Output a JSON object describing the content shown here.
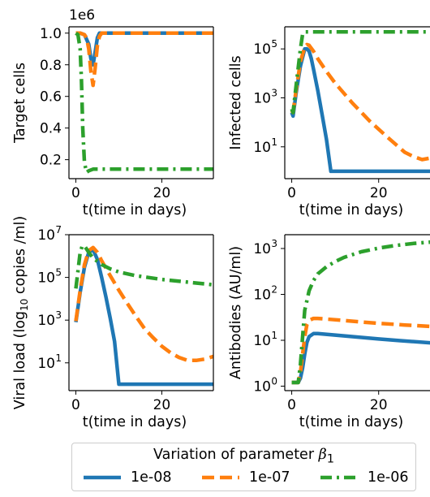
{
  "colors": {
    "blue": "#1f77b4",
    "orange": "#ff7f0e",
    "green": "#2ca02c"
  },
  "legend": {
    "title": "Variation of parameter ",
    "title_symbol": "β",
    "title_subscript": "1",
    "entries": [
      {
        "label": "1e-08",
        "color": "#1f77b4",
        "style": "solid"
      },
      {
        "label": "1e-07",
        "color": "#ff7f0e",
        "style": "dashed"
      },
      {
        "label": "1e-06",
        "color": "#2ca02c",
        "style": "dashdot"
      }
    ]
  },
  "chart_data": [
    {
      "type": "line",
      "ylabel": "Target cells",
      "xlabel": "t(time in days)",
      "offset_text": "1e6",
      "yscale": "linear",
      "xlim": [
        -1.6,
        32
      ],
      "ylim": [
        0.08,
        1.04
      ],
      "xticks": [
        0,
        20
      ],
      "xtick_labels": [
        "0",
        "20"
      ],
      "yticks": [
        0.2,
        0.4,
        0.6,
        0.8,
        1.0
      ],
      "ytick_labels": [
        "0.2",
        "0.4",
        "0.6",
        "0.8",
        "1.0"
      ],
      "series": [
        {
          "color": "#1f77b4",
          "style": "solid",
          "x": [
            0,
            1,
            2,
            3,
            3.5,
            4,
            4.5,
            5,
            5.5,
            6,
            7,
            10,
            32
          ],
          "y": [
            1.0,
            1.0,
            0.99,
            0.93,
            0.84,
            0.8,
            0.88,
            0.97,
            1.0,
            1.0,
            1.0,
            1.0,
            1.0
          ]
        },
        {
          "color": "#ff7f0e",
          "style": "dashed",
          "x": [
            0,
            1,
            2,
            2.5,
            3,
            3.5,
            4,
            4.5,
            5,
            5.5,
            6,
            7,
            10,
            32
          ],
          "y": [
            1.0,
            1.0,
            0.99,
            0.97,
            0.9,
            0.76,
            0.67,
            0.78,
            0.92,
            0.98,
            1.0,
            1.0,
            1.0,
            1.0
          ]
        },
        {
          "color": "#2ca02c",
          "style": "dashdot",
          "x": [
            0,
            0.5,
            1,
            1.3,
            1.6,
            2,
            2.5,
            3,
            4,
            6,
            10,
            20,
            32
          ],
          "y": [
            1.0,
            0.99,
            0.9,
            0.7,
            0.4,
            0.18,
            0.12,
            0.13,
            0.14,
            0.14,
            0.14,
            0.14,
            0.14
          ]
        }
      ]
    },
    {
      "type": "line",
      "ylabel": "Infected cells",
      "xlabel": "t(time in days)",
      "yscale": "log",
      "xlim": [
        -1.6,
        32
      ],
      "ylim": [
        0.5,
        800000
      ],
      "xticks": [
        0,
        20
      ],
      "xtick_labels": [
        "0",
        "20"
      ],
      "yticks": [
        10,
        1000,
        100000
      ],
      "ytick_labels": [
        "10^1",
        "10^3",
        "10^5"
      ],
      "series": [
        {
          "color": "#1f77b4",
          "style": "solid",
          "x": [
            0,
            0.3,
            1,
            2,
            3,
            3.5,
            4,
            4.5,
            5,
            6,
            7,
            8,
            9,
            10,
            20,
            32
          ],
          "y": [
            250,
            180,
            1500,
            20000,
            100000,
            100000,
            80000,
            40000,
            15000,
            2000,
            200,
            20,
            1,
            1,
            1,
            1
          ]
        },
        {
          "color": "#ff7f0e",
          "style": "dashed",
          "x": [
            0,
            0.3,
            1,
            2,
            3,
            3.5,
            4,
            5,
            6,
            8,
            10,
            14,
            18,
            22,
            26,
            28,
            30,
            32
          ],
          "y": [
            300,
            250,
            2000,
            30000,
            120000,
            150000,
            140000,
            80000,
            40000,
            12000,
            4000,
            600,
            110,
            25,
            6,
            4,
            3,
            3.5
          ]
        },
        {
          "color": "#2ca02c",
          "style": "dashdot",
          "x": [
            0,
            0.3,
            1,
            2,
            2.5,
            3,
            4,
            10,
            20,
            32
          ],
          "y": [
            350,
            250,
            3000,
            100000,
            400000,
            500000,
            500000,
            500000,
            500000,
            500000
          ]
        }
      ]
    },
    {
      "type": "line",
      "ylabel": "Viral load (log10 copies /ml)",
      "xlabel": "t(time in days)",
      "yscale": "log",
      "xlim": [
        -1.6,
        32
      ],
      "ylim": [
        0.5,
        10000000
      ],
      "xticks": [
        0,
        20
      ],
      "xtick_labels": [
        "0",
        "20"
      ],
      "yticks": [
        10,
        1000,
        100000,
        10000000
      ],
      "ytick_labels": [
        "10^1",
        "10^3",
        "10^5",
        "10^7"
      ],
      "series": [
        {
          "color": "#1f77b4",
          "style": "solid",
          "x": [
            0,
            1,
            2,
            3,
            4,
            5,
            6,
            7,
            8,
            9,
            10,
            11,
            20,
            32
          ],
          "y": [
            800,
            20000,
            300000,
            1500000,
            2000000,
            700000,
            100000,
            12000,
            1200,
            100,
            1,
            1,
            1,
            1
          ]
        },
        {
          "color": "#ff7f0e",
          "style": "dashed",
          "x": [
            0,
            1,
            2,
            3,
            4,
            5,
            6,
            8,
            10,
            12,
            14,
            16,
            18,
            20,
            22,
            24,
            26,
            28,
            30,
            32
          ],
          "y": [
            900,
            25000,
            400000,
            1800000,
            2500000,
            1500000,
            600000,
            120000,
            25000,
            6000,
            1500,
            400,
            150,
            60,
            30,
            18,
            13,
            13,
            15,
            20
          ]
        },
        {
          "color": "#2ca02c",
          "style": "dashdot",
          "x": [
            0,
            0.5,
            1,
            1.5,
            2,
            3,
            4,
            6,
            8,
            10,
            14,
            20,
            26,
            32
          ],
          "y": [
            30000,
            200000,
            1500000,
            3000000,
            3000000,
            1500000,
            800000,
            400000,
            250000,
            180000,
            120000,
            80000,
            60000,
            45000
          ]
        }
      ]
    },
    {
      "type": "line",
      "ylabel": "Antibodies (AU/ml)",
      "xlabel": "t(time in days)",
      "yscale": "log",
      "xlim": [
        -1.6,
        32
      ],
      "ylim": [
        0.8,
        2000
      ],
      "xticks": [
        0,
        20
      ],
      "xtick_labels": [
        "0",
        "20"
      ],
      "yticks": [
        1,
        10,
        100,
        1000
      ],
      "ytick_labels": [
        "10^0",
        "10^1",
        "10^2",
        "10^3"
      ],
      "series": [
        {
          "color": "#1f77b4",
          "style": "solid",
          "x": [
            0,
            1.5,
            2,
            2.5,
            3,
            3.5,
            4,
            5,
            6,
            10,
            15,
            20,
            25,
            32
          ],
          "y": [
            1.2,
            1.2,
            1.5,
            2.5,
            5,
            9,
            12,
            14,
            14,
            13,
            11.8,
            10.7,
            9.8,
            8.8
          ]
        },
        {
          "color": "#ff7f0e",
          "style": "dashed",
          "x": [
            0,
            1.5,
            2,
            2.5,
            3,
            3.5,
            4,
            5,
            6,
            8,
            12,
            16,
            20,
            26,
            32
          ],
          "y": [
            1.2,
            1.2,
            2,
            5,
            12,
            22,
            27,
            30,
            30,
            29,
            27,
            25,
            23.5,
            21.5,
            20
          ]
        },
        {
          "color": "#2ca02c",
          "style": "dashdot",
          "x": [
            0,
            1.5,
            2,
            2.5,
            3,
            4,
            5,
            6,
            8,
            10,
            12,
            16,
            20,
            24,
            28,
            32
          ],
          "y": [
            1.2,
            1.2,
            3,
            12,
            45,
            120,
            200,
            280,
            400,
            520,
            640,
            850,
            1020,
            1170,
            1290,
            1380
          ]
        }
      ]
    }
  ]
}
